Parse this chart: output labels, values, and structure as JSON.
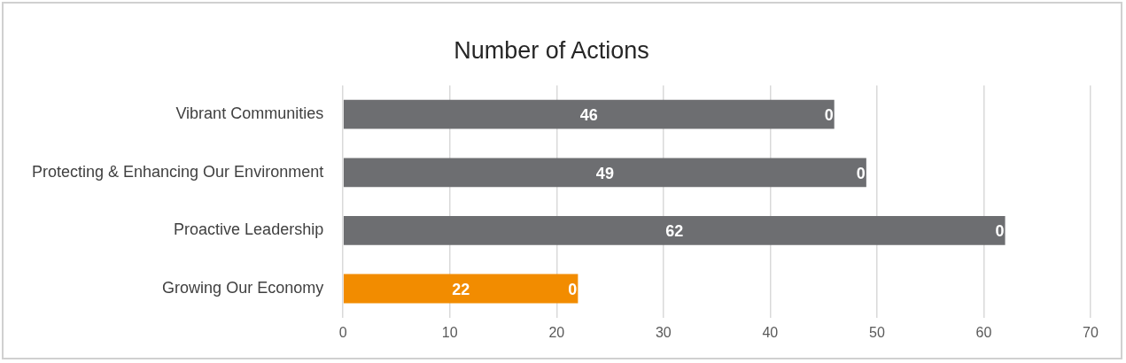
{
  "chart_data": {
    "type": "bar",
    "title": "Number of Actions",
    "orientation": "horizontal",
    "stacked": true,
    "categories": [
      "Vibrant Communities",
      "Protecting & Enhancing Our Environment",
      "Proactive Leadership",
      "Growing Our Economy"
    ],
    "series": [
      {
        "colors": [
          "#6d6e71",
          "#6d6e71",
          "#6d6e71",
          "#f28c00"
        ],
        "values": [
          46,
          49,
          62,
          22
        ]
      },
      {
        "values": [
          0,
          0,
          0,
          0
        ]
      }
    ],
    "data_labels": true,
    "xlim": [
      0,
      70
    ],
    "xticks": [
      0,
      10,
      20,
      30,
      40,
      50,
      60,
      70
    ],
    "grid": "x",
    "legend": false
  }
}
